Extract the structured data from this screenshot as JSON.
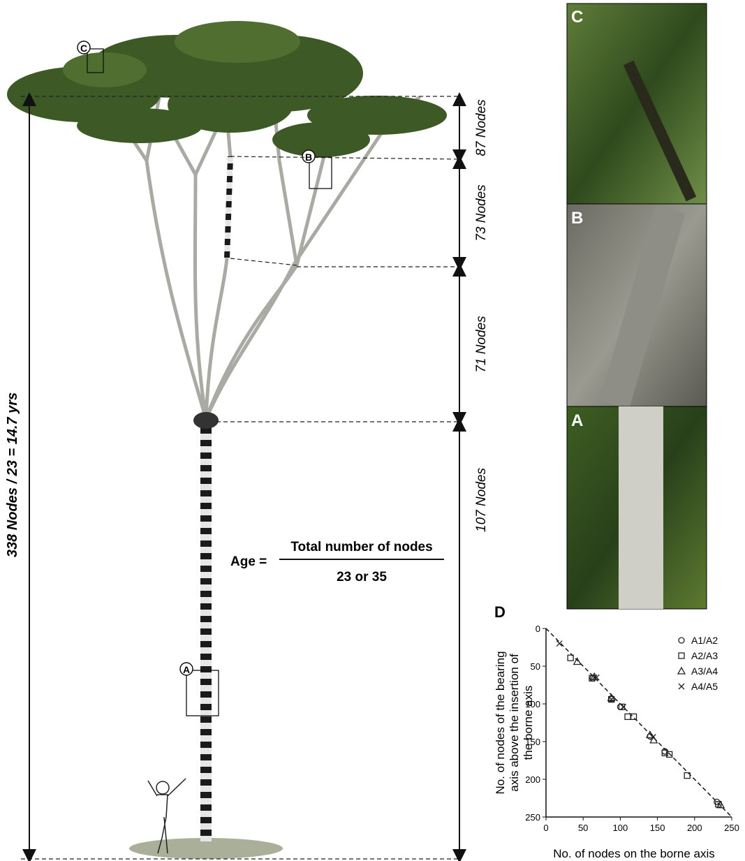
{
  "tree": {
    "segments": [
      "87 Nodes",
      "73 Nodes",
      "71 Nodes",
      "107 Nodes"
    ],
    "total": "338 Nodes / 23 = 14.7 yrs",
    "callouts": [
      "A",
      "B",
      "C"
    ]
  },
  "formula": {
    "lhs": "Age =",
    "numerator": "Total number of nodes",
    "denominator": "23 or 35"
  },
  "photos": {
    "labels": [
      "C",
      "B",
      "A"
    ]
  },
  "chart_data": {
    "type": "scatter",
    "panel": "D",
    "xlabel": "No. of nodes on the borne axis",
    "ylabel": [
      "No. of nodes of the bearing",
      "axis above the insertion of",
      "the borne axis"
    ],
    "xlim": [
      0,
      250
    ],
    "ylim": [
      0,
      250
    ],
    "y_inverted": true,
    "xticks": [
      0,
      50,
      100,
      150,
      200,
      250
    ],
    "yticks": [
      0,
      50,
      100,
      150,
      200,
      250
    ],
    "legend": "top-right",
    "series": [
      {
        "name": "A1/A2",
        "marker": "circle",
        "x": [
          63,
          88,
          100,
          140,
          160,
          230
        ],
        "values": [
          66,
          93,
          104,
          143,
          163,
          230
        ]
      },
      {
        "name": "A2/A3",
        "marker": "square",
        "x": [
          33,
          62,
          88,
          102,
          110,
          118,
          160,
          166,
          190,
          232
        ],
        "values": [
          39,
          66,
          94,
          104,
          117,
          117,
          165,
          167,
          195,
          233
        ]
      },
      {
        "name": "A3/A4",
        "marker": "triangle",
        "x": [
          42,
          65,
          88,
          140,
          145,
          235
        ],
        "values": [
          44,
          64,
          92,
          141,
          148,
          234
        ]
      },
      {
        "name": "A4/A5",
        "marker": "x",
        "x": [
          18,
          65,
          68,
          88,
          104,
          144
        ],
        "values": [
          20,
          65,
          65,
          94,
          104,
          144
        ]
      }
    ]
  }
}
